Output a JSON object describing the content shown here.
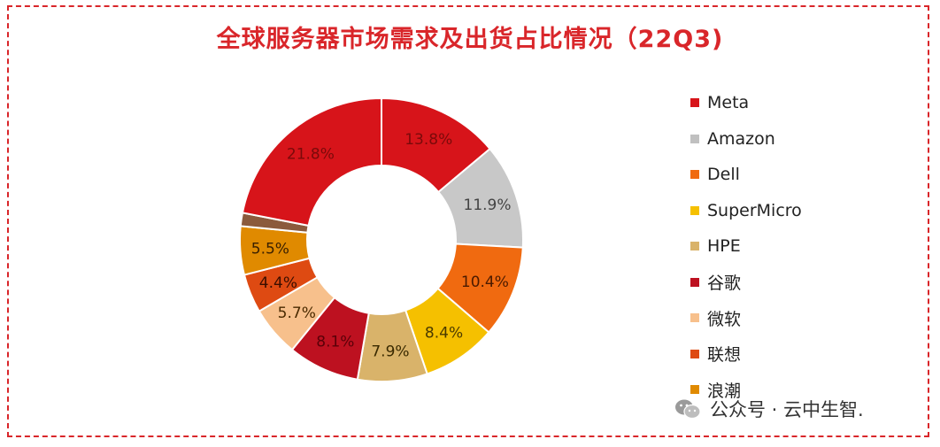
{
  "chart_data": {
    "type": "pie",
    "title": "全球服务器市场需求及出货占比情况（22Q3)",
    "series": [
      {
        "name": "Meta",
        "value": 13.8,
        "label": "13.8%",
        "color": "#d7141a",
        "label_color": "#7a0a0a"
      },
      {
        "name": "Amazon",
        "value": 11.9,
        "label": "11.9%",
        "color": "#c8c8c8",
        "label_color": "#444444"
      },
      {
        "name": "Dell",
        "value": 10.4,
        "label": "10.4%",
        "color": "#f06a10",
        "label_color": "#4a1a00"
      },
      {
        "name": "SuperMicro",
        "value": 8.4,
        "label": "8.4%",
        "color": "#f5c000",
        "label_color": "#4a3a00"
      },
      {
        "name": "HPE",
        "value": 7.9,
        "label": "7.9%",
        "color": "#d9b36a",
        "label_color": "#3a2a00"
      },
      {
        "name": "谷歌",
        "value": 8.1,
        "label": "8.1%",
        "color": "#bd1120",
        "label_color": "#5a0008"
      },
      {
        "name": "微软",
        "value": 5.7,
        "label": "5.7%",
        "color": "#f7c08c",
        "label_color": "#4a2a00"
      },
      {
        "name": "联想",
        "value": 4.4,
        "label": "4.4%",
        "color": "#de4a12",
        "label_color": "#3a0e00"
      },
      {
        "name": "浪潮",
        "value": 5.5,
        "label": "5.5%",
        "color": "#e08a00",
        "label_color": "#3a2000"
      },
      {
        "name": "",
        "value": 1.5,
        "label": "",
        "color": "#8b5a3c",
        "label_color": "#333333"
      },
      {
        "name": "",
        "value": 21.8,
        "label": "21.8%",
        "color": "#d7141a",
        "label_color": "#7a0a0a"
      }
    ],
    "legend_position": "right"
  },
  "legend_items": [
    {
      "name": "Meta",
      "color": "#d7141a"
    },
    {
      "name": "Amazon",
      "color": "#c0c0c0"
    },
    {
      "name": "Dell",
      "color": "#f06a10"
    },
    {
      "name": "SuperMicro",
      "color": "#f5c000"
    },
    {
      "name": "HPE",
      "color": "#d9b36a"
    },
    {
      "name": "谷歌",
      "color": "#bd1120"
    },
    {
      "name": "微软",
      "color": "#f7c08c"
    },
    {
      "name": "联想",
      "color": "#de4a12"
    },
    {
      "name": "浪潮",
      "color": "#e08a00"
    }
  ],
  "watermark": {
    "text": "公众号 · 云中生智."
  }
}
